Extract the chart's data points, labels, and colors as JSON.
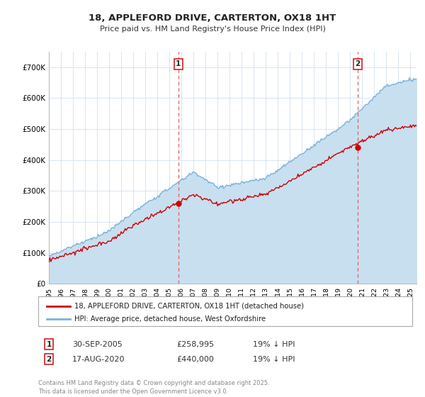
{
  "title": "18, APPLEFORD DRIVE, CARTERTON, OX18 1HT",
  "subtitle": "Price paid vs. HM Land Registry's House Price Index (HPI)",
  "ylim": [
    0,
    750000
  ],
  "yticks": [
    0,
    100000,
    200000,
    300000,
    400000,
    500000,
    600000,
    700000
  ],
  "ytick_labels": [
    "£0",
    "£100K",
    "£200K",
    "£300K",
    "£400K",
    "£500K",
    "£600K",
    "£700K"
  ],
  "hpi_color": "#7ab3d9",
  "hpi_fill_color": "#c8dff0",
  "price_color": "#cc0000",
  "vline_color": "#e06060",
  "annotation1": {
    "label": "1",
    "date_str": "30-SEP-2005",
    "price": "£258,995",
    "hpi_note": "19% ↓ HPI"
  },
  "annotation2": {
    "label": "2",
    "date_str": "17-AUG-2020",
    "price": "£440,000",
    "hpi_note": "19% ↓ HPI"
  },
  "legend_entry1": "18, APPLEFORD DRIVE, CARTERTON, OX18 1HT (detached house)",
  "legend_entry2": "HPI: Average price, detached house, West Oxfordshire",
  "footer": "Contains HM Land Registry data © Crown copyright and database right 2025.\nThis data is licensed under the Open Government Licence v3.0.",
  "background_color": "#ffffff",
  "grid_color": "#d8e4f0",
  "xlim_year": [
    1995,
    2025.5
  ],
  "xtick_years": [
    1995,
    1996,
    1997,
    1998,
    1999,
    2000,
    2001,
    2002,
    2003,
    2004,
    2005,
    2006,
    2007,
    2008,
    2009,
    2010,
    2011,
    2012,
    2013,
    2014,
    2015,
    2016,
    2017,
    2018,
    2019,
    2020,
    2021,
    2022,
    2023,
    2024,
    2025
  ],
  "sale1_year": 2005.75,
  "sale1_price": 258995,
  "sale2_year": 2020.62,
  "sale2_price": 440000
}
